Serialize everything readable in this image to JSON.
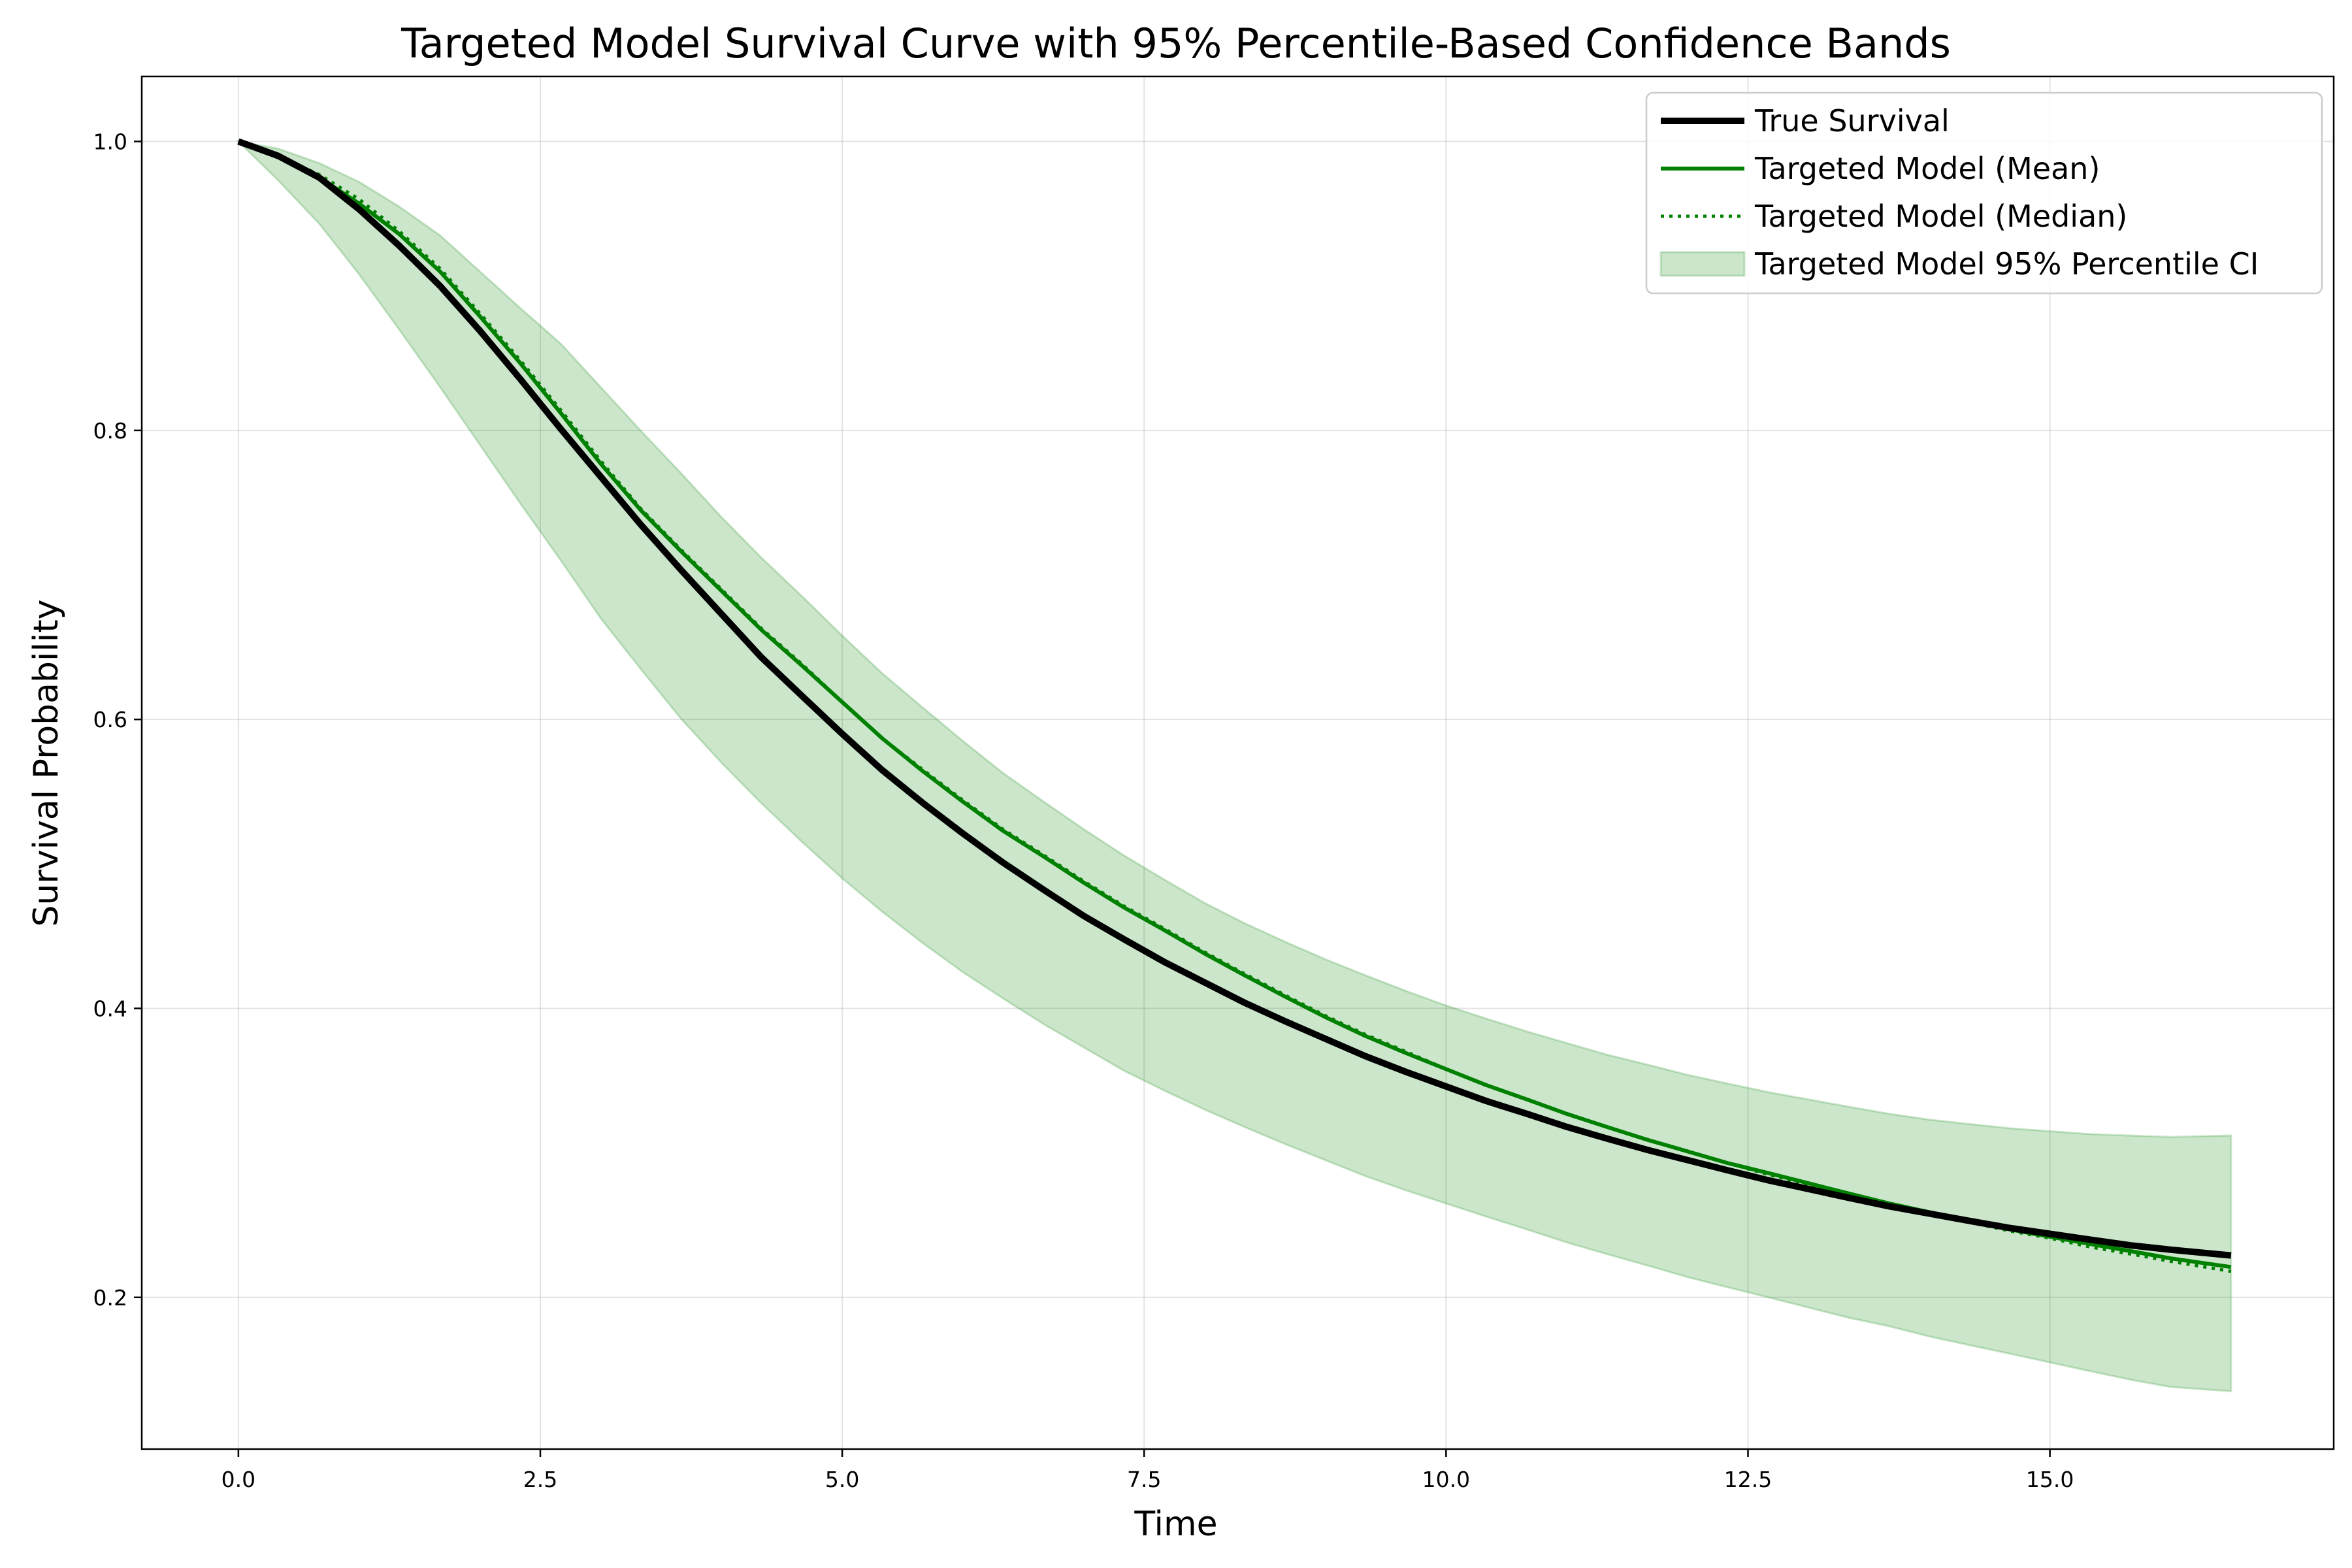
{
  "chart_data": {
    "type": "line",
    "title": "Targeted Model Survival Curve with 95% Percentile-Based Confidence Bands",
    "xlabel": "Time",
    "ylabel": "Survival Probability",
    "xlim": [
      -0.8,
      17.35
    ],
    "ylim": [
      0.095,
      1.045
    ],
    "x_ticks": [
      0.0,
      2.5,
      5.0,
      7.5,
      10.0,
      12.5,
      15.0
    ],
    "x_tick_labels": [
      "0.0",
      "2.5",
      "5.0",
      "7.5",
      "10.0",
      "12.5",
      "15.0"
    ],
    "y_ticks": [
      0.2,
      0.4,
      0.6,
      0.8,
      1.0
    ],
    "y_tick_labels": [
      "0.2",
      "0.4",
      "0.6",
      "0.8",
      "1.0"
    ],
    "grid": true,
    "legend_position": "upper right",
    "x": [
      0.0,
      0.33,
      0.67,
      1.0,
      1.33,
      1.67,
      2.0,
      2.33,
      2.67,
      3.0,
      3.33,
      3.67,
      4.0,
      4.33,
      4.67,
      5.0,
      5.33,
      5.67,
      6.0,
      6.33,
      6.67,
      7.0,
      7.33,
      7.67,
      8.0,
      8.33,
      8.67,
      9.0,
      9.33,
      9.67,
      10.0,
      10.33,
      10.67,
      11.0,
      11.33,
      11.67,
      12.0,
      12.33,
      12.67,
      13.0,
      13.33,
      13.67,
      14.0,
      14.33,
      14.67,
      15.0,
      15.33,
      15.67,
      16.0,
      16.5
    ],
    "series": [
      {
        "name": "True Survival",
        "color": "#000000",
        "style": "solid",
        "values": [
          1.0,
          0.99,
          0.975,
          0.953,
          0.928,
          0.9,
          0.869,
          0.836,
          0.801,
          0.768,
          0.735,
          0.703,
          0.673,
          0.643,
          0.616,
          0.59,
          0.565,
          0.542,
          0.521,
          0.501,
          0.482,
          0.464,
          0.448,
          0.432,
          0.418,
          0.404,
          0.391,
          0.379,
          0.367,
          0.356,
          0.346,
          0.336,
          0.327,
          0.318,
          0.31,
          0.302,
          0.295,
          0.288,
          0.281,
          0.275,
          0.269,
          0.263,
          0.258,
          0.253,
          0.248,
          0.244,
          0.24,
          0.236,
          0.233,
          0.229
        ]
      },
      {
        "name": "Targeted Model (Mean)",
        "color": "#008000",
        "style": "solid",
        "values": [
          1.0,
          0.989,
          0.975,
          0.957,
          0.936,
          0.91,
          0.879,
          0.847,
          0.812,
          0.777,
          0.745,
          0.716,
          0.689,
          0.662,
          0.637,
          0.612,
          0.587,
          0.564,
          0.543,
          0.523,
          0.505,
          0.487,
          0.47,
          0.454,
          0.438,
          0.423,
          0.408,
          0.394,
          0.381,
          0.369,
          0.358,
          0.347,
          0.337,
          0.327,
          0.318,
          0.309,
          0.301,
          0.293,
          0.286,
          0.279,
          0.272,
          0.265,
          0.259,
          0.253,
          0.247,
          0.242,
          0.237,
          0.232,
          0.227,
          0.221
        ]
      },
      {
        "name": "Targeted Model (Median)",
        "color": "#008000",
        "style": "dotted",
        "values": [
          1.0,
          0.99,
          0.977,
          0.96,
          0.938,
          0.912,
          0.881,
          0.849,
          0.814,
          0.779,
          0.746,
          0.717,
          0.69,
          0.663,
          0.638,
          0.612,
          0.587,
          0.565,
          0.544,
          0.524,
          0.506,
          0.488,
          0.471,
          0.455,
          0.439,
          0.424,
          0.409,
          0.395,
          0.382,
          0.37,
          0.358,
          0.347,
          0.337,
          0.327,
          0.318,
          0.309,
          0.301,
          0.293,
          0.285,
          0.278,
          0.271,
          0.264,
          0.258,
          0.252,
          0.246,
          0.241,
          0.235,
          0.23,
          0.225,
          0.218
        ]
      }
    ],
    "band": {
      "name": "Targeted Model 95% Percentile CI",
      "color": "#008000",
      "opacity": 0.2,
      "lower": [
        1.0,
        0.973,
        0.943,
        0.908,
        0.87,
        0.83,
        0.79,
        0.75,
        0.71,
        0.67,
        0.635,
        0.6,
        0.57,
        0.542,
        0.515,
        0.49,
        0.467,
        0.445,
        0.425,
        0.407,
        0.389,
        0.373,
        0.357,
        0.343,
        0.33,
        0.318,
        0.306,
        0.295,
        0.284,
        0.274,
        0.265,
        0.256,
        0.247,
        0.238,
        0.23,
        0.222,
        0.214,
        0.207,
        0.2,
        0.193,
        0.186,
        0.18,
        0.173,
        0.167,
        0.161,
        0.155,
        0.149,
        0.143,
        0.138,
        0.135
      ],
      "upper": [
        1.0,
        0.995,
        0.985,
        0.972,
        0.955,
        0.935,
        0.91,
        0.885,
        0.86,
        0.83,
        0.8,
        0.77,
        0.74,
        0.712,
        0.685,
        0.658,
        0.632,
        0.608,
        0.585,
        0.563,
        0.543,
        0.524,
        0.506,
        0.489,
        0.473,
        0.459,
        0.446,
        0.434,
        0.423,
        0.412,
        0.402,
        0.393,
        0.384,
        0.376,
        0.368,
        0.361,
        0.354,
        0.348,
        0.342,
        0.337,
        0.332,
        0.327,
        0.323,
        0.32,
        0.317,
        0.315,
        0.313,
        0.312,
        0.311,
        0.312
      ]
    }
  }
}
